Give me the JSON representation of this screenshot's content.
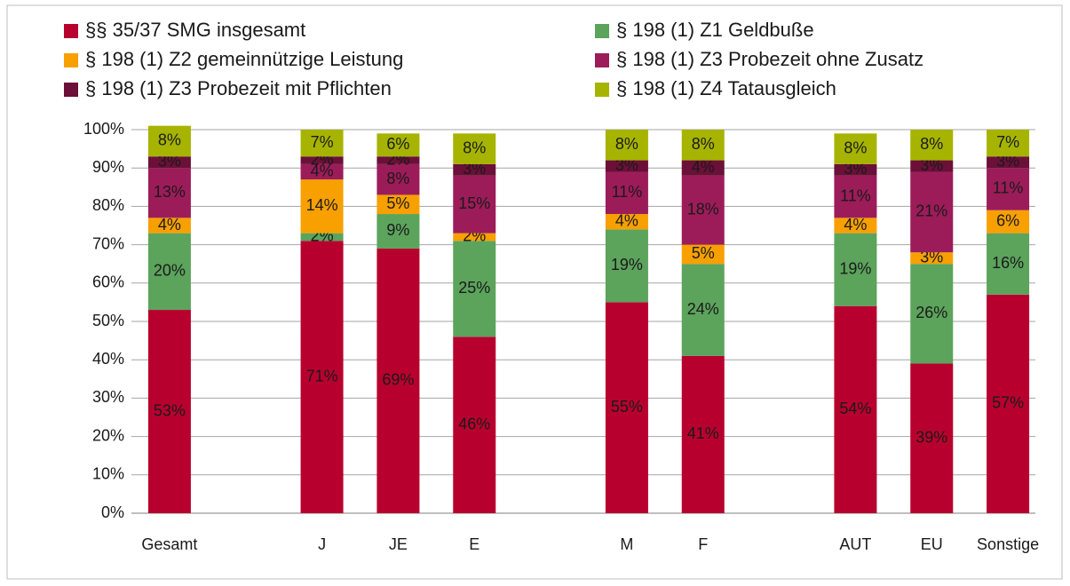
{
  "chart_data": {
    "type": "stacked_bar",
    "categories": [
      "Gesamt",
      null,
      "J",
      "JE",
      "E",
      null,
      "M",
      "F",
      null,
      "AUT",
      "EU",
      "Sonstige"
    ],
    "ylim": [
      0,
      100
    ],
    "yticks": [
      {
        "value": 0,
        "label": "0%"
      },
      {
        "value": 10,
        "label": "10%"
      },
      {
        "value": 20,
        "label": "20%"
      },
      {
        "value": 30,
        "label": "30%"
      },
      {
        "value": 40,
        "label": "40%"
      },
      {
        "value": 50,
        "label": "50%"
      },
      {
        "value": 60,
        "label": "60%"
      },
      {
        "value": 70,
        "label": "70%"
      },
      {
        "value": 80,
        "label": "80%"
      },
      {
        "value": 90,
        "label": "90%"
      },
      {
        "value": 100,
        "label": "100%"
      }
    ],
    "grid": true,
    "series": [
      {
        "name": "§§ 35/37 SMG insgesamt",
        "color": "#b8002e",
        "values": [
          53,
          null,
          71,
          69,
          46,
          null,
          55,
          41,
          null,
          54,
          39,
          57
        ],
        "value_labels": [
          "53%",
          null,
          "71%",
          "69%",
          "46%",
          null,
          "55%",
          "41%",
          null,
          "54%",
          "39%",
          "57%"
        ]
      },
      {
        "name": "§ 198 (1) Z1 Geldbuße",
        "color": "#5ca35c",
        "values": [
          20,
          null,
          2,
          9,
          25,
          null,
          19,
          24,
          null,
          19,
          26,
          16
        ],
        "value_labels": [
          "20%",
          null,
          "2%",
          "9%",
          "25%",
          null,
          "19%",
          "24%",
          null,
          "19%",
          "26%",
          "16%"
        ]
      },
      {
        "name": "§ 198 (1) Z2 gemeinnützige Leistung",
        "color": "#f7a000",
        "values": [
          4,
          null,
          14,
          5,
          2,
          null,
          4,
          5,
          null,
          4,
          3,
          6
        ],
        "value_labels": [
          "4%",
          null,
          "14%",
          "5%",
          "2%",
          null,
          "4%",
          "5%",
          null,
          "4%",
          "3%",
          "6%"
        ]
      },
      {
        "name": "§ 198 (1) Z3 Probezeit ohne Zusatz",
        "color": "#9c1c5a",
        "values": [
          13,
          null,
          4,
          8,
          15,
          null,
          11,
          18,
          null,
          11,
          21,
          11
        ],
        "value_labels": [
          "13%",
          null,
          "4%",
          "8%",
          "15%",
          null,
          "11%",
          "18%",
          null,
          "11%",
          "21%",
          "11%"
        ]
      },
      {
        "name": "§ 198 (1) Z3 Probezeit mit Pflichten",
        "color": "#6b1038",
        "values": [
          3,
          null,
          2,
          2,
          3,
          null,
          3,
          4,
          null,
          3,
          3,
          3
        ],
        "value_labels": [
          "3%",
          null,
          "2%",
          "2%",
          "3%",
          null,
          "3%",
          "4%",
          null,
          "3%",
          "3%",
          "3%"
        ]
      },
      {
        "name": "§ 198 (1) Z4 Tatausgleich",
        "color": "#a6b400",
        "values": [
          8,
          null,
          7,
          6,
          8,
          null,
          8,
          8,
          null,
          8,
          8,
          7
        ],
        "value_labels": [
          "8%",
          null,
          "7%",
          "6%",
          "8%",
          null,
          "8%",
          "8%",
          null,
          "8%",
          "8%",
          "7%"
        ]
      }
    ]
  }
}
